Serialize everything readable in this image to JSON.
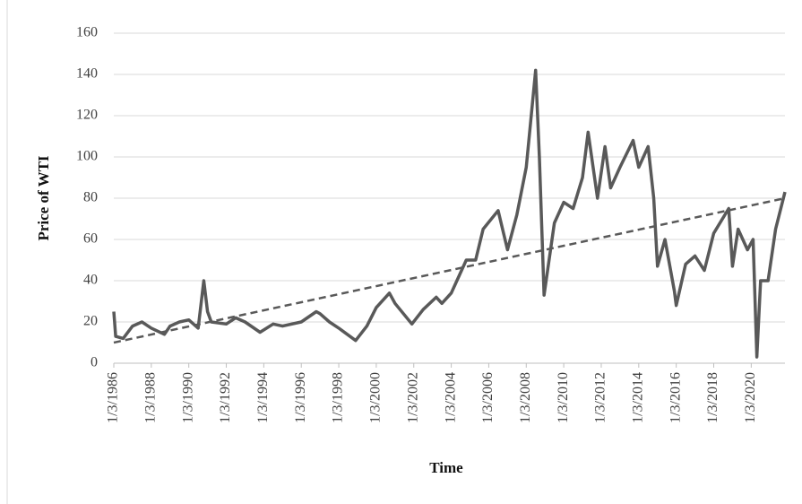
{
  "chart_data": {
    "type": "line",
    "x_label": "Time",
    "y_label": "Price of WTI",
    "xlim": [
      1986,
      2021.8
    ],
    "ylim": [
      0,
      160
    ],
    "yticks": [
      0,
      20,
      40,
      60,
      80,
      100,
      120,
      140,
      160
    ],
    "xticks": [
      {
        "value": 1986,
        "label": "1/3/1986"
      },
      {
        "value": 1988,
        "label": "1/3/1988"
      },
      {
        "value": 1990,
        "label": "1/3/1990"
      },
      {
        "value": 1992,
        "label": "1/3/1992"
      },
      {
        "value": 1994,
        "label": "1/3/1994"
      },
      {
        "value": 1996,
        "label": "1/3/1996"
      },
      {
        "value": 1998,
        "label": "1/3/1998"
      },
      {
        "value": 2000,
        "label": "1/3/2000"
      },
      {
        "value": 2002,
        "label": "1/3/2002"
      },
      {
        "value": 2004,
        "label": "1/3/2004"
      },
      {
        "value": 2006,
        "label": "1/3/2006"
      },
      {
        "value": 2008,
        "label": "1/3/2008"
      },
      {
        "value": 2010,
        "label": "1/3/2010"
      },
      {
        "value": 2012,
        "label": "1/3/2012"
      },
      {
        "value": 2014,
        "label": "1/3/2014"
      },
      {
        "value": 2016,
        "label": "1/3/2016"
      },
      {
        "value": 2018,
        "label": "1/3/2018"
      },
      {
        "value": 2020,
        "label": "1/3/2020"
      }
    ],
    "grid": true,
    "series": [
      {
        "color": "#595959",
        "style": "solid",
        "x": [
          1986.0,
          1986.1,
          1986.5,
          1987,
          1987.5,
          1988,
          1988.7,
          1989,
          1989.5,
          1990,
          1990.5,
          1990.8,
          1991.0,
          1991.2,
          1992,
          1992.5,
          1993,
          1993.8,
          1994.5,
          1995,
          1996,
          1996.8,
          1997,
          1997.5,
          1998,
          1998.9,
          1999.5,
          2000,
          2000.7,
          2001,
          2001.9,
          2002.5,
          2003.2,
          2003.5,
          2004,
          2004.8,
          2005.3,
          2005.7,
          2006.5,
          2007,
          2007.5,
          2008,
          2008.5,
          2008.7,
          2008.95,
          2009.5,
          2010,
          2010.5,
          2011,
          2011.3,
          2011.8,
          2012.2,
          2012.5,
          2013,
          2013.7,
          2014,
          2014.5,
          2014.8,
          2015,
          2015.4,
          2015.9,
          2016,
          2016.5,
          2017,
          2017.5,
          2018,
          2018.8,
          2019,
          2019.3,
          2019.8,
          2020.1,
          2020.3,
          2020.5,
          2020.9,
          2021.3,
          2021.8
        ],
        "values": [
          25,
          13,
          12,
          18,
          20,
          17,
          14,
          18,
          20,
          21,
          17,
          40,
          25,
          20,
          19,
          22,
          20,
          15,
          19,
          18,
          20,
          25,
          24,
          20,
          17,
          11,
          18,
          27,
          34,
          29,
          19,
          26,
          32,
          29,
          34,
          50,
          50,
          65,
          74,
          55,
          72,
          95,
          142,
          100,
          33,
          68,
          78,
          75,
          90,
          112,
          80,
          105,
          85,
          95,
          108,
          95,
          105,
          80,
          47,
          60,
          35,
          28,
          48,
          52,
          45,
          63,
          75,
          47,
          65,
          55,
          60,
          3,
          40,
          40,
          65,
          83
        ]
      },
      {
        "color": "#595959",
        "style": "dashed",
        "x": [
          1986,
          2021.8
        ],
        "values": [
          10,
          80
        ]
      }
    ]
  }
}
